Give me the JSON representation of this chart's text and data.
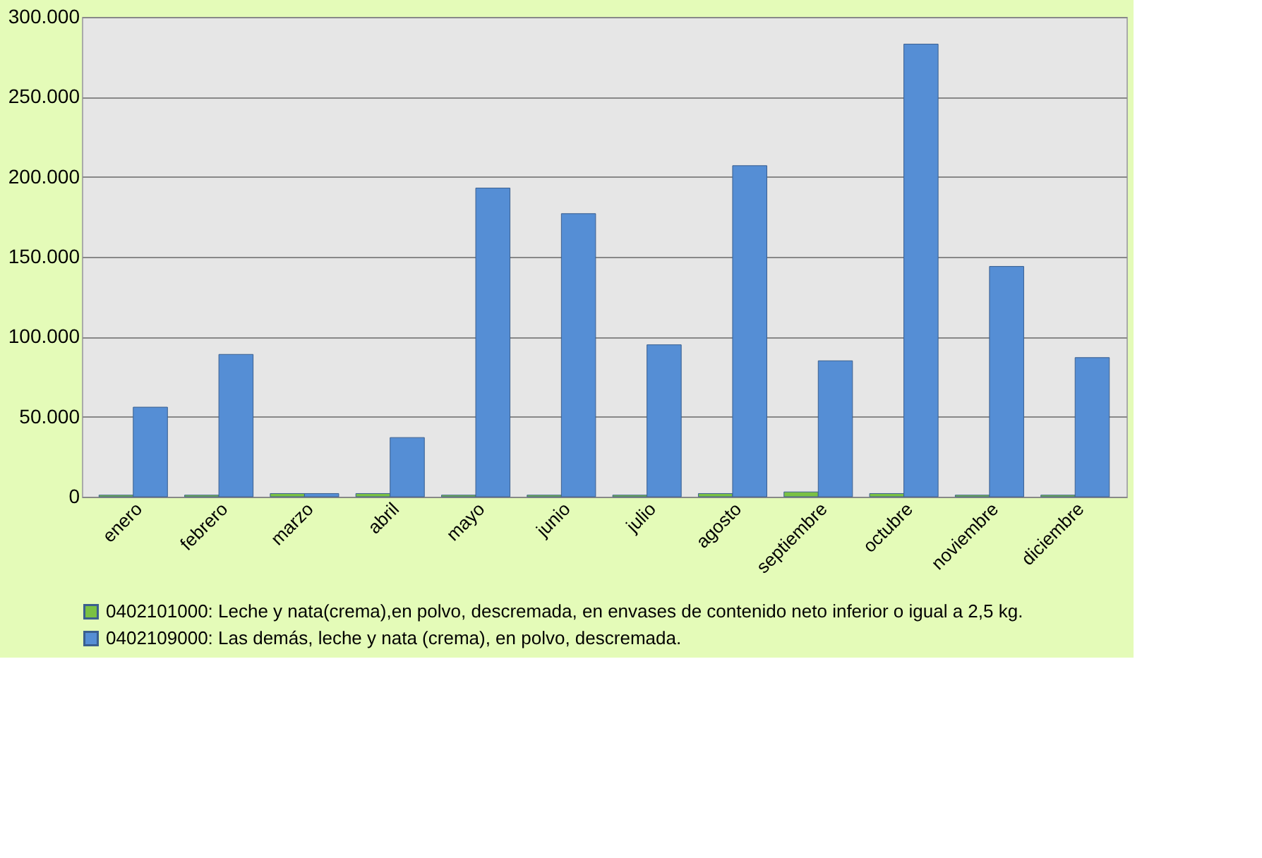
{
  "chart_data": {
    "type": "bar",
    "categories": [
      "enero",
      "febrero",
      "marzo",
      "abril",
      "mayo",
      "junio",
      "julio",
      "agosto",
      "septiembre",
      "octubre",
      "noviembre",
      "diciembre"
    ],
    "series": [
      {
        "name": "0402101000: Leche y nata(crema),en polvo, descremada, en envases de contenido neto inferior o igual a 2,5 kg.",
        "color": "#7ac143",
        "values": [
          1000,
          1000,
          2000,
          2000,
          1000,
          1000,
          1000,
          2000,
          3000,
          2000,
          1000,
          1000
        ]
      },
      {
        "name": "0402109000: Las demás, leche y nata (crema), en polvo, descremada.",
        "color": "#558ed5",
        "values": [
          56000,
          89000,
          2000,
          37000,
          193000,
          177000,
          95000,
          207000,
          85000,
          283000,
          144000,
          87000
        ]
      }
    ],
    "ylim": [
      0,
      300000
    ],
    "yticks": [
      {
        "value": 0,
        "label": "0"
      },
      {
        "value": 50000,
        "label": "50.000"
      },
      {
        "value": 100000,
        "label": "100.000"
      },
      {
        "value": 150000,
        "label": "150.000"
      },
      {
        "value": 200000,
        "label": "200.000"
      },
      {
        "value": 250000,
        "label": "250.000"
      },
      {
        "value": 300000,
        "label": "300.000"
      }
    ],
    "grid": "y",
    "legend": "bottom"
  }
}
